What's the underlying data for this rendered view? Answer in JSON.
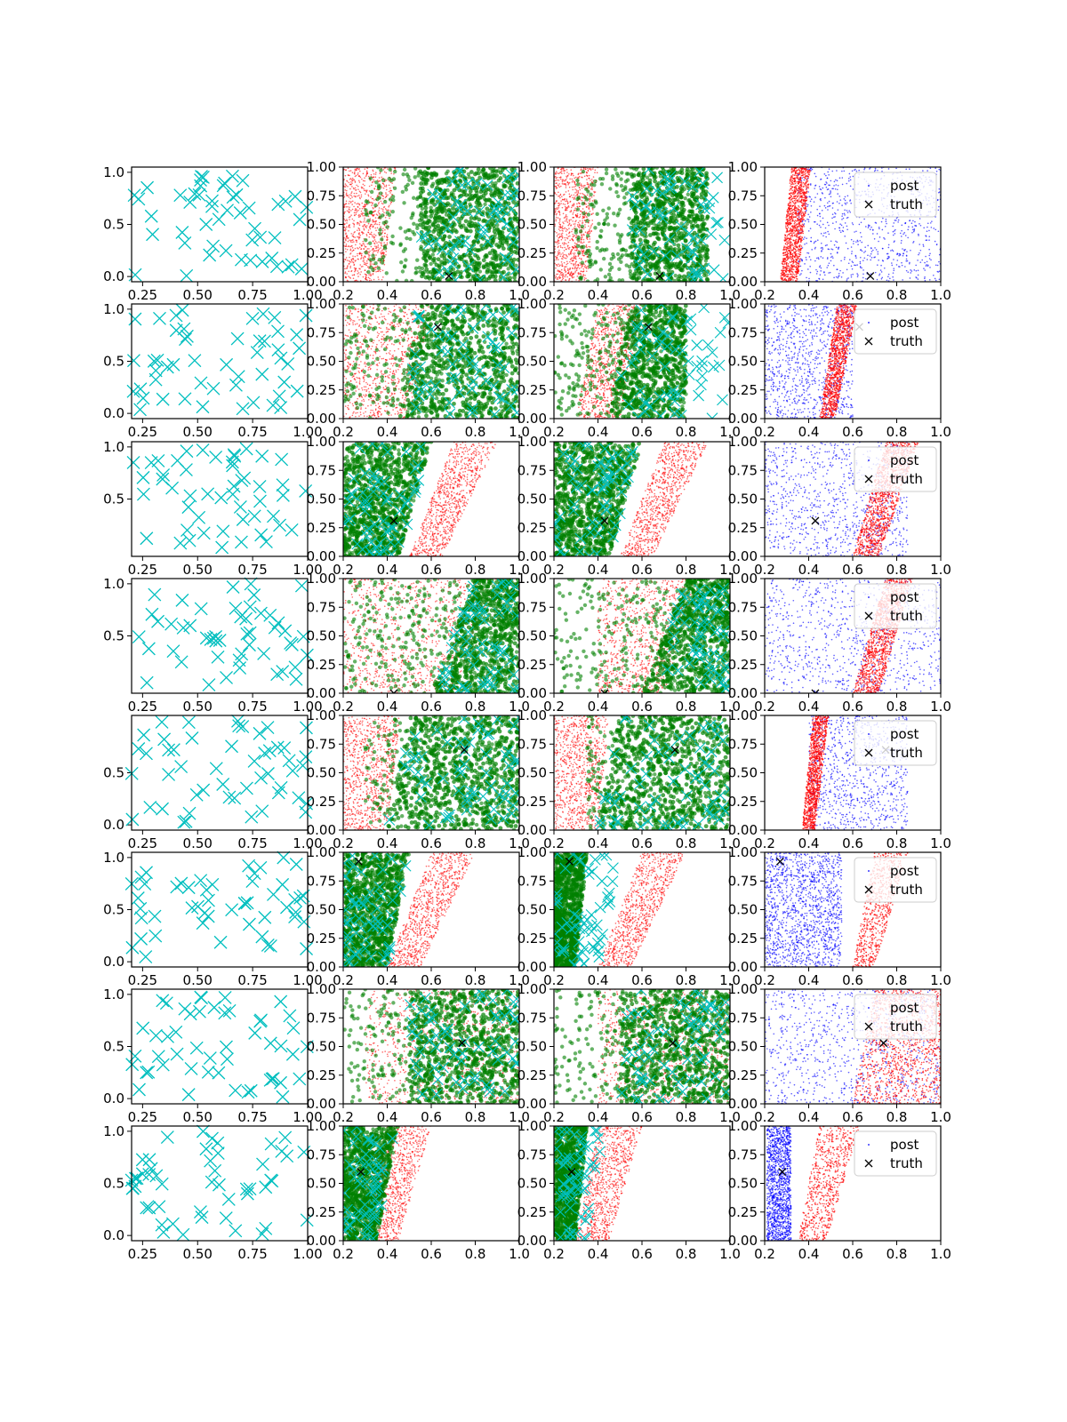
{
  "chart_data": {
    "type": "scatter",
    "rows": [
      {
        "truth": [
          0.68,
          0.05
        ],
        "axes1_yticks": [
          "0.0",
          "0.5",
          "1.0"
        ],
        "panel4_main": "red"
      },
      {
        "truth": [
          0.63,
          0.8
        ],
        "axes1_yticks": [
          "0.0",
          "0.5",
          "1.0"
        ],
        "panel4_main": "red"
      },
      {
        "truth": [
          0.43,
          0.31
        ],
        "axes1_yticks": [
          "0.5",
          "1.0"
        ],
        "panel4_main": "red"
      },
      {
        "truth": [
          0.43,
          0.0
        ],
        "axes1_yticks": [
          "0.5",
          "1.0"
        ],
        "panel4_main": "red"
      },
      {
        "truth": [
          0.75,
          0.7
        ],
        "axes1_yticks": [
          "0.0",
          "0.5"
        ],
        "panel4_main": "red"
      },
      {
        "truth": [
          0.27,
          0.92
        ],
        "axes1_yticks": [
          "0.0",
          "0.5",
          "1.0"
        ],
        "panel4_main": "blue"
      },
      {
        "truth": [
          0.74,
          0.53
        ],
        "axes1_yticks": [
          "0.0",
          "0.5",
          "1.0"
        ],
        "panel4_main": "red"
      },
      {
        "truth": [
          0.28,
          0.6
        ],
        "axes1_yticks": [
          "0.0",
          "0.5",
          "1.0"
        ],
        "panel4_main": "blue"
      }
    ],
    "col1_xticks": [
      "0.25",
      "0.50",
      "0.75",
      "1.00"
    ],
    "col_xticks": [
      "0.2",
      "0.4",
      "0.6",
      "0.8",
      "1.0"
    ],
    "col_yticks": [
      "0.00",
      "0.25",
      "0.50",
      "0.75",
      "1.00"
    ],
    "legend": {
      "post": "post",
      "truth": "truth",
      "placement": "upper right"
    },
    "colors": {
      "cyan": "#00bfbf",
      "green": "#008000",
      "red": "#ff0000",
      "blue": "#0000ff",
      "black": "#000000"
    },
    "col1_xlim": [
      0.2,
      1.0
    ],
    "col1_ylim": [
      -0.05,
      1.05
    ],
    "xlim": [
      0.2,
      1.0
    ],
    "ylim": [
      0.0,
      1.0
    ]
  }
}
